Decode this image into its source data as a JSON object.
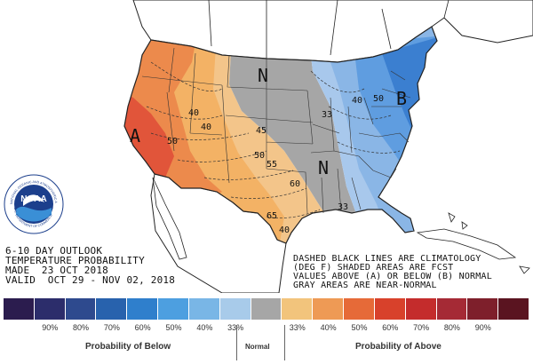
{
  "map": {
    "category_labels": [
      {
        "id": "N-north",
        "text": "N"
      },
      {
        "id": "N-south",
        "text": "N"
      },
      {
        "id": "A-west",
        "text": "A"
      },
      {
        "id": "B-east",
        "text": "B"
      }
    ],
    "contour_labels": [
      {
        "id": "c40-nw",
        "text": "40"
      },
      {
        "id": "c50-ca",
        "text": "50"
      },
      {
        "id": "c40-mid",
        "text": "40"
      },
      {
        "id": "c45",
        "text": "45"
      },
      {
        "id": "c50-mid",
        "text": "50"
      },
      {
        "id": "c55",
        "text": "55"
      },
      {
        "id": "c60",
        "text": "60"
      },
      {
        "id": "c65",
        "text": "65"
      },
      {
        "id": "c40-tx",
        "text": "40"
      },
      {
        "id": "c33-n",
        "text": "33"
      },
      {
        "id": "c33-s",
        "text": "33"
      },
      {
        "id": "c40-e",
        "text": "40"
      },
      {
        "id": "c50-e",
        "text": "50"
      }
    ],
    "region_colors": {
      "above_60": "#e1553a",
      "above_50": "#ec8a4c",
      "above_40": "#f3b265",
      "above_33": "#f3c58a",
      "normal": "#a6a6a6",
      "below_33": "#a8c8ec",
      "below_40": "#8ab6e6",
      "below_50": "#5f9de0",
      "below_60": "#3b7fd0",
      "land": "#ffffff",
      "outline": "#222222"
    }
  },
  "title_block": {
    "line1": "6-10 DAY OUTLOOK",
    "line2": "TEMPERATURE PROBABILITY",
    "line3": "MADE  23 OCT 2018",
    "line4": "VALID  OCT 29 - NOV 02, 2018"
  },
  "notes": {
    "line1": "DASHED BLACK LINES ARE CLIMATOLOGY",
    "line2": "(DEG F) SHADED AREAS ARE FCST",
    "line3": "VALUES ABOVE (A) OR BELOW (B) NORMAL",
    "line4": "GRAY AREAS ARE NEAR-NORMAL"
  },
  "logo": {
    "center_text": "NOAA",
    "ring_text": "NATIONAL OCEANIC AND ATMOSPHERIC ADMINISTRATION",
    "ring_text_bottom": "U.S. DEPARTMENT OF COMMERCE"
  },
  "legend": {
    "swatches": [
      "#2b1c4e",
      "#2c2d6b",
      "#2e4a8e",
      "#2862ad",
      "#2f7fcc",
      "#4d9fe0",
      "#79b6e6",
      "#a8cbea",
      "#a6a6a6",
      "#f2c47c",
      "#ee9a55",
      "#e66a38",
      "#d8412b",
      "#c42c2c",
      "#a52a35",
      "#7e1f2b",
      "#5a1420"
    ],
    "percent_labels": [
      "90%",
      "80%",
      "70%",
      "60%",
      "50%",
      "40%",
      "33%",
      "33%",
      "40%",
      "50%",
      "60%",
      "70%",
      "80%",
      "90%"
    ],
    "below_caption": "Probability of Below",
    "normal_caption": "Normal",
    "above_caption": "Probability of Above"
  }
}
